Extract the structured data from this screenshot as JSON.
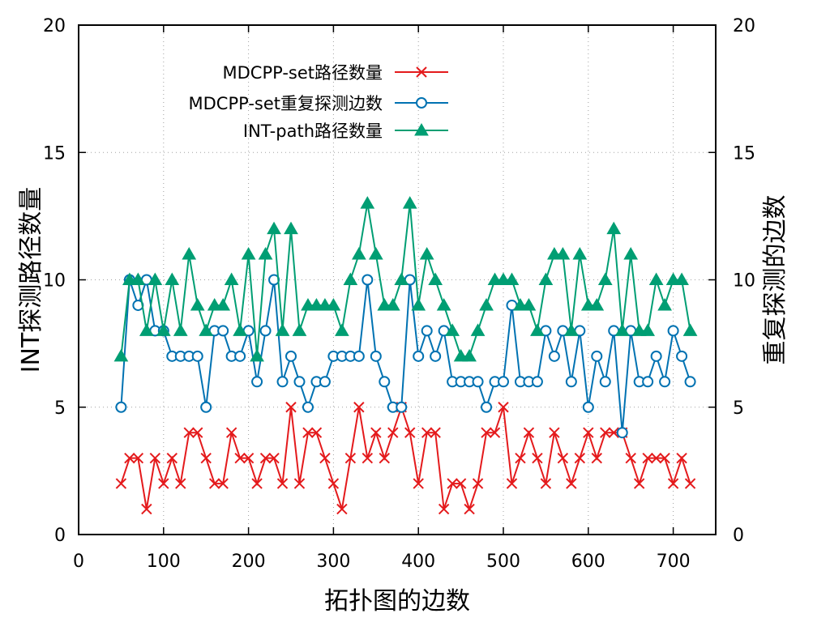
{
  "chart_data": {
    "type": "line",
    "title": "",
    "xlabel": "拓扑图的边数",
    "ylabel": "INT探测路径数量",
    "y2label": "重复探测的边数",
    "xlim": [
      0,
      750
    ],
    "ylim": [
      0,
      20
    ],
    "y2lim": [
      0,
      20
    ],
    "xticks": [
      "0",
      "100",
      "200",
      "300",
      "400",
      "500",
      "600",
      "700"
    ],
    "yticks": [
      "0",
      "5",
      "10",
      "15",
      "20"
    ],
    "y2ticks": [
      "0",
      "5",
      "10",
      "15",
      "20"
    ],
    "grid": true,
    "legend_position": "top-left",
    "x": [
      50,
      60,
      70,
      80,
      90,
      100,
      110,
      120,
      130,
      140,
      150,
      160,
      170,
      180,
      190,
      200,
      210,
      220,
      230,
      240,
      250,
      260,
      270,
      280,
      290,
      300,
      310,
      320,
      330,
      340,
      350,
      360,
      370,
      380,
      390,
      400,
      410,
      420,
      430,
      440,
      450,
      460,
      470,
      480,
      490,
      500,
      510,
      520,
      530,
      540,
      550,
      560,
      570,
      580,
      590,
      600,
      610,
      620,
      630,
      640,
      650,
      660,
      670,
      680,
      690,
      700,
      710,
      720
    ],
    "series": [
      {
        "name": "MDCPP-set路径数量",
        "color": "#e41a1c",
        "marker": "x",
        "axis": "y",
        "values": [
          2,
          3,
          3,
          1,
          3,
          2,
          3,
          2,
          4,
          4,
          3,
          2,
          2,
          4,
          3,
          3,
          2,
          3,
          3,
          2,
          5,
          2,
          4,
          4,
          3,
          2,
          1,
          3,
          5,
          3,
          4,
          3,
          4,
          5,
          4,
          2,
          4,
          4,
          1,
          2,
          2,
          1,
          2,
          4,
          4,
          5,
          2,
          3,
          4,
          3,
          2,
          4,
          3,
          2,
          3,
          4,
          3,
          4,
          4,
          4,
          3,
          2,
          3,
          3,
          3,
          2,
          3,
          2
        ]
      },
      {
        "name": "MDCPP-set重复探测边数",
        "color": "#0072b2",
        "marker": "circle",
        "axis": "y2",
        "values": [
          5,
          10,
          9,
          10,
          8,
          8,
          7,
          7,
          7,
          7,
          5,
          8,
          8,
          7,
          7,
          8,
          6,
          8,
          10,
          6,
          7,
          6,
          5,
          6,
          6,
          7,
          7,
          7,
          7,
          10,
          7,
          6,
          5,
          5,
          10,
          7,
          8,
          7,
          8,
          6,
          6,
          6,
          6,
          5,
          6,
          6,
          9,
          6,
          6,
          6,
          8,
          7,
          8,
          6,
          8,
          5,
          7,
          6,
          8,
          4,
          8,
          6,
          6,
          7,
          6,
          8,
          7,
          6
        ]
      },
      {
        "name": "INT-path路径数量",
        "color": "#009e73",
        "marker": "triangle",
        "axis": "y",
        "values": [
          7,
          10,
          10,
          8,
          10,
          8,
          10,
          8,
          11,
          9,
          8,
          9,
          9,
          10,
          8,
          11,
          7,
          11,
          12,
          8,
          12,
          8,
          9,
          9,
          9,
          9,
          8,
          10,
          11,
          13,
          11,
          9,
          9,
          10,
          13,
          9,
          11,
          10,
          9,
          8,
          7,
          7,
          8,
          9,
          10,
          10,
          10,
          9,
          9,
          8,
          10,
          11,
          11,
          8,
          11,
          9,
          9,
          10,
          12,
          8,
          11,
          8,
          8,
          10,
          9,
          10,
          10,
          8
        ]
      }
    ]
  }
}
